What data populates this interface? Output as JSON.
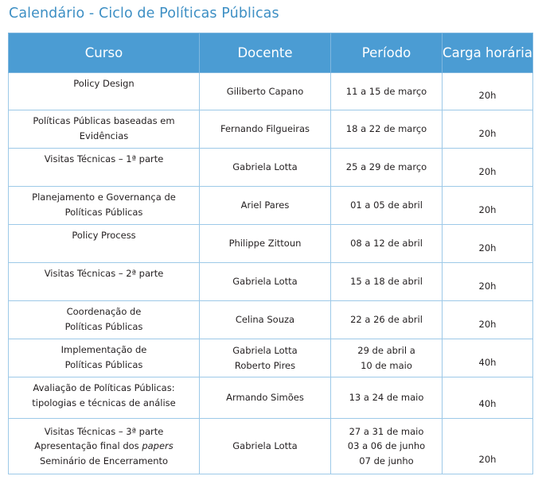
{
  "title": "Calendário - Ciclo de Políticas Públicas",
  "headers": [
    "Curso",
    "Docente",
    "Período",
    "Carga horária"
  ],
  "rows": [
    {
      "curso": [
        "Policy Design"
      ],
      "docente": [
        "Giliberto Capano"
      ],
      "periodo": [
        "11 a 15 de março"
      ],
      "carga": "20h"
    },
    {
      "curso": [
        "Políticas Públicas baseadas em",
        "Evidências"
      ],
      "docente": [
        "Fernando Filgueiras"
      ],
      "periodo": [
        "18 a 22 de março"
      ],
      "carga": "20h"
    },
    {
      "curso": [
        "Visitas Técnicas – 1ª parte"
      ],
      "docente": [
        "Gabriela Lotta"
      ],
      "periodo": [
        "25 a 29 de março"
      ],
      "carga": "20h"
    },
    {
      "curso": [
        "Planejamento e Governança de",
        "Políticas Públicas"
      ],
      "docente": [
        "Ariel Pares"
      ],
      "periodo": [
        "01 a 05 de abril"
      ],
      "carga": "20h"
    },
    {
      "curso": [
        "Policy Process"
      ],
      "docente": [
        "Philippe Zittoun"
      ],
      "periodo": [
        "08 a 12 de abril"
      ],
      "carga": "20h"
    },
    {
      "curso": [
        "Visitas Técnicas – 2ª parte"
      ],
      "docente": [
        "Gabriela Lotta"
      ],
      "periodo": [
        "15 a 18 de abril"
      ],
      "carga": "20h"
    },
    {
      "curso": [
        "Coordenação de",
        "Políticas Públicas"
      ],
      "docente": [
        "Celina Souza"
      ],
      "periodo": [
        "22 a 26 de abril"
      ],
      "carga": "20h"
    },
    {
      "curso": [
        "Implementação de",
        "Políticas Públicas"
      ],
      "docente": [
        "Gabriela Lotta",
        "Roberto Pires"
      ],
      "periodo": [
        "29 de abril a",
        "10 de maio"
      ],
      "carga": "40h"
    },
    {
      "curso": [
        "Avaliação de Políticas Públicas:",
        "tipologias e técnicas de análise"
      ],
      "docente": [
        "Armando Simões"
      ],
      "periodo": [
        "13 a 24 de maio"
      ],
      "carga": "40h"
    },
    {
      "curso": [
        "Visitas Técnicas – 3ª parte",
        "Apresentação final dos papers",
        "Seminário de Encerramento"
      ],
      "docente": [
        "Gabriela Lotta"
      ],
      "periodo": [
        "27 a 31 de maio",
        "03 a 06 de junho",
        "07 de junho"
      ],
      "carga": "20h"
    }
  ]
}
